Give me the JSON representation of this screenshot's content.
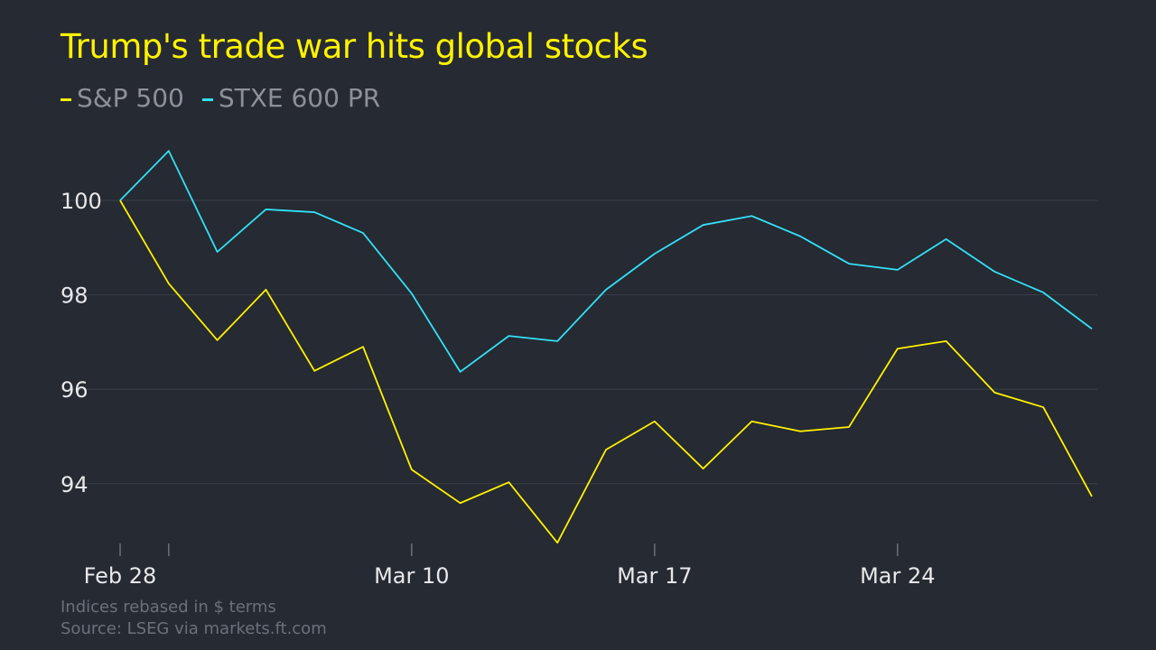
{
  "chart_data": {
    "type": "line",
    "title": "Trump's trade war hits global stocks",
    "x": [
      "Feb 28",
      "Mar 3",
      "Mar 4",
      "Mar 5",
      "Mar 6",
      "Mar 7",
      "Mar 10",
      "Mar 11",
      "Mar 12",
      "Mar 13",
      "Mar 14",
      "Mar 17",
      "Mar 18",
      "Mar 19",
      "Mar 20",
      "Mar 21",
      "Mar 24",
      "Mar 25",
      "Mar 26",
      "Mar 27",
      "Mar 28"
    ],
    "x_tick_labels": [
      "Feb 28",
      "Mar 10",
      "Mar 17",
      "Mar 24"
    ],
    "y_ticks": [
      94,
      96,
      98,
      100
    ],
    "ylim": [
      92.6,
      101.3
    ],
    "grid": true,
    "legend_position": "top-left",
    "series": [
      {
        "name": "S&P 500",
        "color": "#fff200",
        "values": [
          100,
          98.24,
          97.04,
          98.11,
          96.39,
          96.9,
          94.3,
          93.59,
          94.03,
          92.75,
          94.72,
          95.32,
          94.32,
          95.32,
          95.11,
          95.2,
          96.86,
          97.02,
          95.93,
          95.62,
          93.73
        ]
      },
      {
        "name": "STXE 600 PR",
        "color": "#33e0f5",
        "values": [
          100,
          101.05,
          98.91,
          99.81,
          99.75,
          99.31,
          98.03,
          96.37,
          97.13,
          97.02,
          98.11,
          98.87,
          99.48,
          99.67,
          99.24,
          98.66,
          98.53,
          99.18,
          98.49,
          98.05,
          97.28
        ]
      }
    ],
    "notes": [
      "Indices rebased in $ terms",
      "Source: LSEG via markets.ft.com"
    ]
  }
}
